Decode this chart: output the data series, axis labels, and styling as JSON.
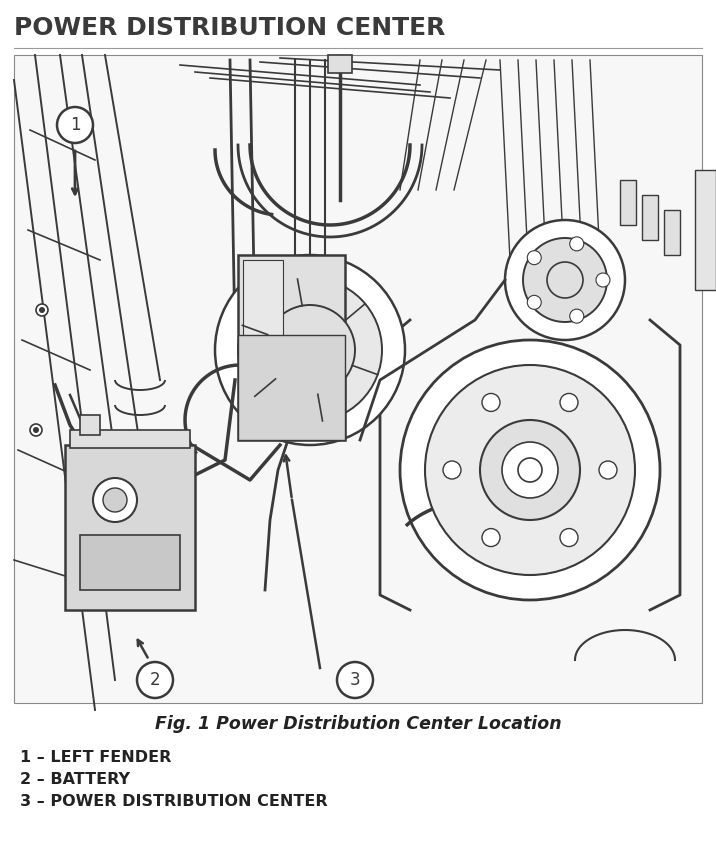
{
  "title": "POWER DISTRIBUTION CENTER",
  "fig_caption": "Fig. 1 Power Distribution Center Location",
  "legend_items": [
    "1 – LEFT FENDER",
    "2 – BATTERY",
    "3 – POWER DISTRIBUTION CENTER"
  ],
  "title_color": "#3a3a3a",
  "title_fontsize": 18,
  "caption_fontsize": 12.5,
  "legend_fontsize": 11.5,
  "line_color": "#3a3a3a",
  "gray_fill": "#c8c8c8",
  "light_gray": "#e0e0e0",
  "white": "#ffffff",
  "diagram_bg": "#f7f7f7"
}
